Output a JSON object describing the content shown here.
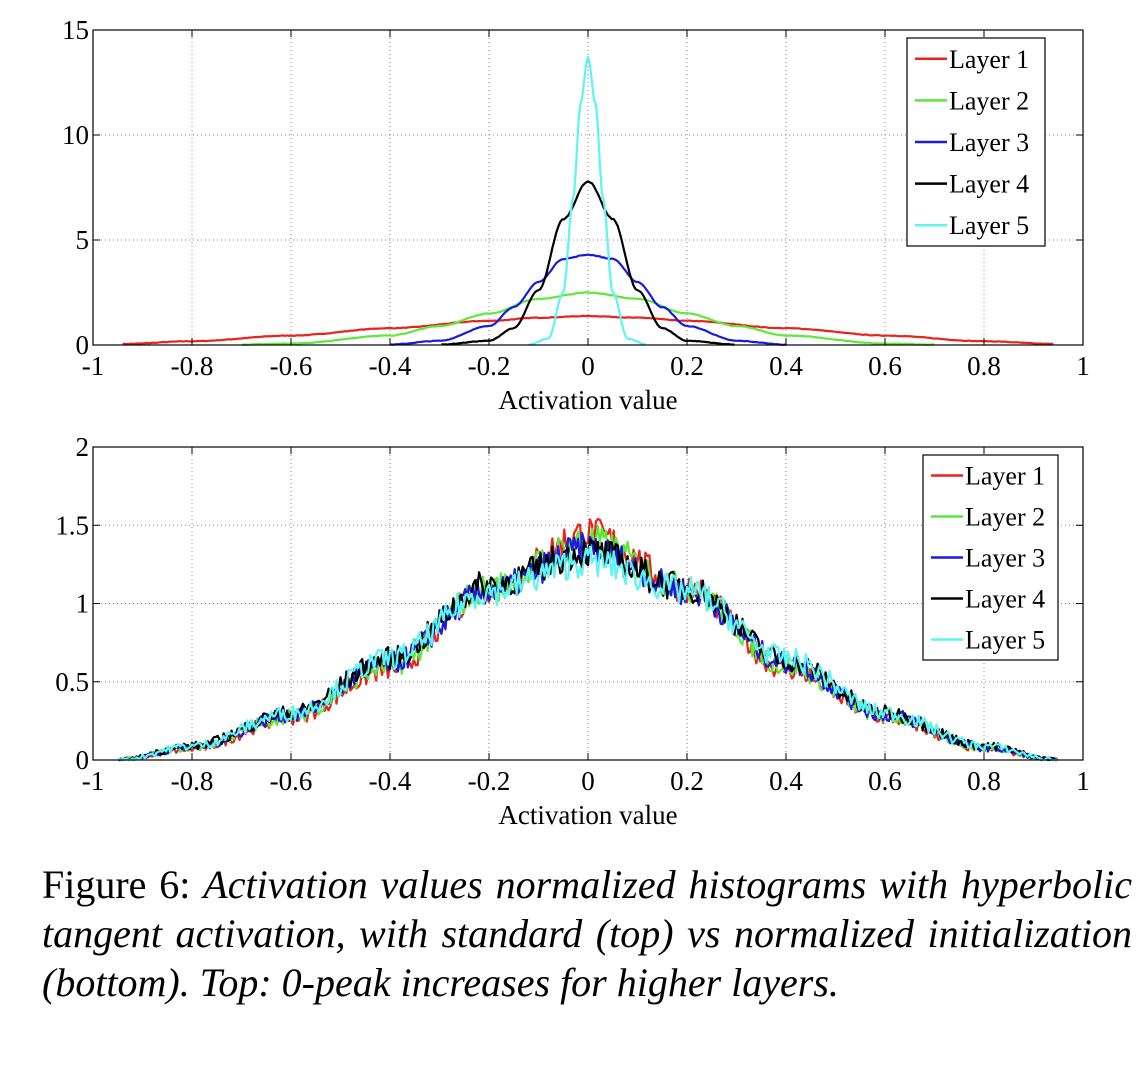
{
  "chart_data": [
    {
      "type": "line",
      "panel": "top",
      "title": "",
      "xlabel": "Activation value",
      "ylabel": "",
      "xlim": [
        -1,
        1
      ],
      "ylim": [
        0,
        15
      ],
      "xticks": [
        -1,
        -0.8,
        -0.6,
        -0.4,
        -0.2,
        0,
        0.2,
        0.4,
        0.6,
        0.8,
        1
      ],
      "yticks": [
        0,
        5,
        10,
        15
      ],
      "xtick_labels": [
        "-1",
        "-0.8",
        "-0.6",
        "-0.4",
        "-0.2",
        "0",
        "0.2",
        "0.4",
        "0.6",
        "0.8",
        "1"
      ],
      "ytick_labels": [
        "0",
        "5",
        "10",
        "15"
      ],
      "grid": true,
      "legend_position": "top-right",
      "series": [
        {
          "name": "Layer 1",
          "color": "#e8231b",
          "x": [
            -0.94,
            -0.8,
            -0.6,
            -0.4,
            -0.2,
            -0.1,
            0,
            0.1,
            0.2,
            0.4,
            0.6,
            0.8,
            0.94
          ],
          "y": [
            0.05,
            0.18,
            0.45,
            0.8,
            1.15,
            1.3,
            1.38,
            1.3,
            1.15,
            0.8,
            0.45,
            0.18,
            0.05
          ]
        },
        {
          "name": "Layer 2",
          "color": "#5ee83a",
          "x": [
            -0.7,
            -0.6,
            -0.4,
            -0.3,
            -0.2,
            -0.1,
            0,
            0.1,
            0.2,
            0.3,
            0.4,
            0.6,
            0.7
          ],
          "y": [
            0.02,
            0.07,
            0.45,
            0.9,
            1.5,
            2.2,
            2.5,
            2.2,
            1.5,
            0.9,
            0.45,
            0.07,
            0.02
          ]
        },
        {
          "name": "Layer 3",
          "color": "#1a1ae0",
          "x": [
            -0.4,
            -0.3,
            -0.2,
            -0.15,
            -0.1,
            -0.05,
            0,
            0.05,
            0.1,
            0.15,
            0.2,
            0.3,
            0.4
          ],
          "y": [
            0.02,
            0.2,
            0.9,
            1.8,
            3.0,
            4.1,
            4.3,
            4.1,
            3.0,
            1.8,
            0.9,
            0.2,
            0.02
          ]
        },
        {
          "name": "Layer 4",
          "color": "#000000",
          "x": [
            -0.3,
            -0.2,
            -0.15,
            -0.1,
            -0.05,
            0,
            0.05,
            0.1,
            0.15,
            0.2,
            0.3
          ],
          "y": [
            0.02,
            0.2,
            0.8,
            2.6,
            6.0,
            7.8,
            6.0,
            2.6,
            0.8,
            0.2,
            0.02
          ]
        },
        {
          "name": "Layer 5",
          "color": "#5cf4f4",
          "x": [
            -0.12,
            -0.08,
            -0.05,
            -0.03,
            -0.015,
            0,
            0.015,
            0.03,
            0.05,
            0.08,
            0.12
          ],
          "y": [
            0.02,
            0.3,
            2.5,
            7.0,
            11.5,
            13.7,
            11.5,
            7.0,
            2.5,
            0.3,
            0.02
          ]
        }
      ]
    },
    {
      "type": "line",
      "panel": "bottom",
      "title": "",
      "xlabel": "Activation value",
      "ylabel": "",
      "xlim": [
        -1,
        1
      ],
      "ylim": [
        0,
        2
      ],
      "xticks": [
        -1,
        -0.8,
        -0.6,
        -0.4,
        -0.2,
        0,
        0.2,
        0.4,
        0.6,
        0.8,
        1
      ],
      "yticks": [
        0,
        0.5,
        1,
        1.5,
        2
      ],
      "xtick_labels": [
        "-1",
        "-0.8",
        "-0.6",
        "-0.4",
        "-0.2",
        "0",
        "0.2",
        "0.4",
        "0.6",
        "0.8",
        "1"
      ],
      "ytick_labels": [
        "0",
        "0.5",
        "1",
        "1.5",
        "2"
      ],
      "grid": true,
      "legend_position": "top-right",
      "series": [
        {
          "name": "Layer 1",
          "color": "#e8231b",
          "x": [
            -0.95,
            -0.8,
            -0.6,
            -0.4,
            -0.2,
            0,
            0.2,
            0.4,
            0.6,
            0.8,
            0.95
          ],
          "y": [
            0.0,
            0.07,
            0.27,
            0.58,
            1.1,
            1.45,
            1.1,
            0.58,
            0.27,
            0.07,
            0.0
          ]
        },
        {
          "name": "Layer 2",
          "color": "#5ee83a",
          "x": [
            -0.95,
            -0.8,
            -0.6,
            -0.4,
            -0.2,
            0,
            0.2,
            0.4,
            0.6,
            0.8,
            0.95
          ],
          "y": [
            0.0,
            0.08,
            0.28,
            0.6,
            1.1,
            1.4,
            1.1,
            0.6,
            0.28,
            0.08,
            0.0
          ]
        },
        {
          "name": "Layer 3",
          "color": "#1a1ae0",
          "x": [
            -0.95,
            -0.8,
            -0.6,
            -0.4,
            -0.2,
            0,
            0.2,
            0.4,
            0.6,
            0.8,
            0.95
          ],
          "y": [
            0.0,
            0.08,
            0.29,
            0.62,
            1.08,
            1.35,
            1.08,
            0.62,
            0.29,
            0.08,
            0.0
          ]
        },
        {
          "name": "Layer 4",
          "color": "#000000",
          "x": [
            -0.95,
            -0.8,
            -0.6,
            -0.4,
            -0.2,
            0,
            0.2,
            0.4,
            0.6,
            0.8,
            0.95
          ],
          "y": [
            0.0,
            0.09,
            0.3,
            0.65,
            1.12,
            1.33,
            1.1,
            0.64,
            0.3,
            0.09,
            0.0
          ]
        },
        {
          "name": "Layer 5",
          "color": "#5cf4f4",
          "x": [
            -0.95,
            -0.8,
            -0.6,
            -0.4,
            -0.2,
            0,
            0.2,
            0.4,
            0.6,
            0.8,
            0.95
          ],
          "y": [
            0.0,
            0.09,
            0.3,
            0.65,
            1.08,
            1.27,
            1.08,
            0.65,
            0.3,
            0.09,
            0.0
          ]
        }
      ]
    }
  ],
  "caption": {
    "label": "Figure 6:",
    "text": "Activation values normalized histograms with hyperbolic tangent activation, with standard (top) vs normalized initialization (bottom). Top: 0-peak increases for higher layers."
  }
}
